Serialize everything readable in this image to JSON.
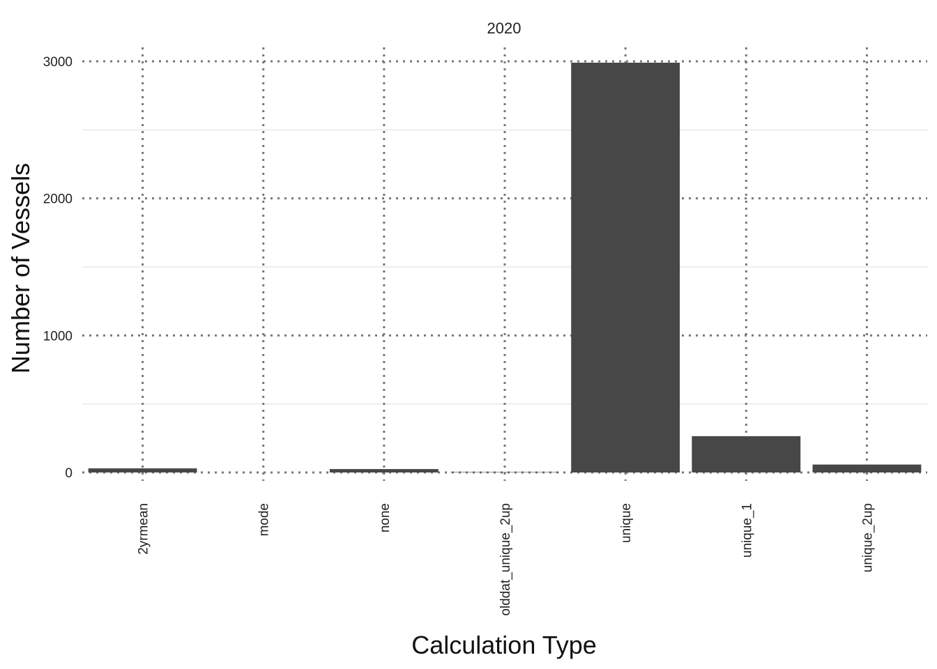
{
  "chart_data": {
    "type": "bar",
    "facet_title": "2020",
    "xlabel": "Calculation Type",
    "ylabel": "Number of Vessels",
    "categories": [
      "2yrmean",
      "mode",
      "none",
      "olddat_unique_2up",
      "unique",
      "unique_1",
      "unique_2up"
    ],
    "values": [
      30,
      0,
      25,
      3,
      2990,
      265,
      58
    ],
    "ylim": [
      -50,
      3100
    ],
    "yticks": [
      0,
      1000,
      2000,
      3000
    ],
    "yticks_minor": [
      500,
      1500,
      2500
    ],
    "grid": true,
    "legend": "none",
    "colors": {
      "bar": "#474747",
      "major_grid": "#777777",
      "minor_grid": "#e8e8e8"
    }
  }
}
